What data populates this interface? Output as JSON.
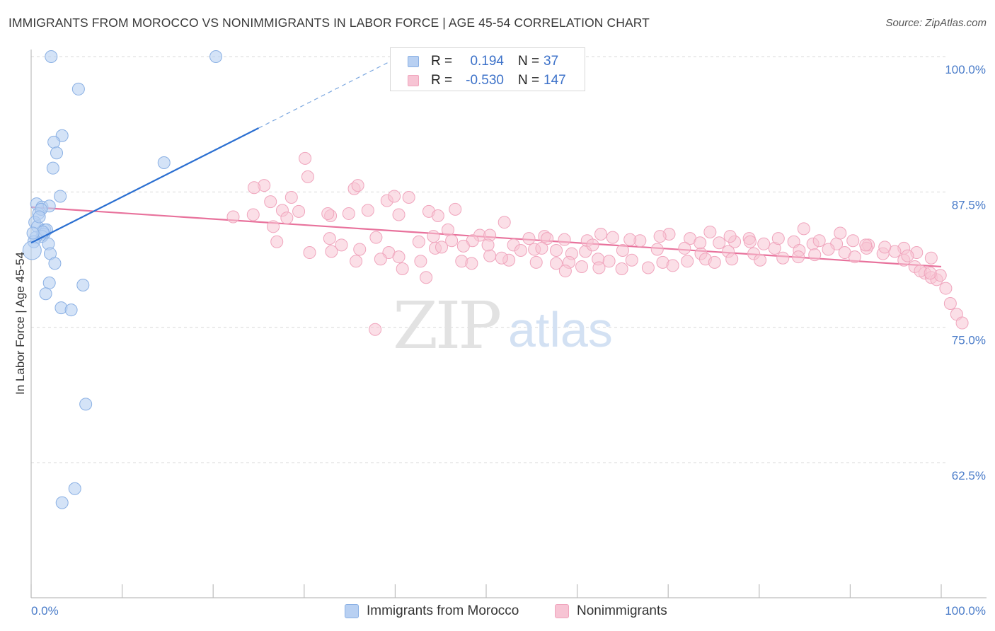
{
  "header": {
    "title": "IMMIGRANTS FROM MOROCCO VS NONIMMIGRANTS IN LABOR FORCE | AGE 45-54 CORRELATION CHART",
    "source": "Source: ZipAtlas.com"
  },
  "watermark": {
    "zip": "ZIP",
    "atlas": "atlas"
  },
  "legend_top": {
    "rows": [
      {
        "r_label": "R =",
        "r_value": "0.194",
        "n_label": "N =",
        "n_value": "37"
      },
      {
        "r_label": "R =",
        "r_value": "-0.530",
        "n_label": "N =",
        "n_value": "147"
      }
    ]
  },
  "legend_bottom": {
    "items": [
      "Immigrants from Morocco",
      "Nonimmigrants"
    ]
  },
  "colors": {
    "blue_fill": "#b8d0f2",
    "blue_stroke": "#8ab0e4",
    "blue_line": "#2b6fd1",
    "pink_fill": "#f7c4d4",
    "pink_stroke": "#f0a5bd",
    "pink_line": "#e8729c",
    "tick_text": "#4a7cc9",
    "grid": "#d9d9d9"
  },
  "chart_data": {
    "type": "scatter",
    "title": "IMMIGRANTS FROM MOROCCO VS NONIMMIGRANTS IN LABOR FORCE | AGE 45-54 CORRELATION CHART",
    "xlabel": "",
    "ylabel": "In Labor Force | Age 45-54",
    "xlim": [
      0,
      100
    ],
    "ylim": [
      50,
      101.5
    ],
    "y_ticks": [
      62.5,
      75.0,
      87.5,
      100.0
    ],
    "y_tick_labels": [
      "62.5%",
      "75.0%",
      "87.5%",
      "100.0%"
    ],
    "x_tick_labels": [
      "0.0%",
      "100.0%"
    ],
    "series": [
      {
        "name": "Immigrants from Morocco",
        "R": 0.194,
        "N": 37,
        "trend": {
          "x0": 0,
          "y0": 82.8,
          "x1": 25,
          "y1": 93.4,
          "dash_x1": 40.5,
          "dash_y1": 100.0
        },
        "points": [
          [
            2.2,
            100.0
          ],
          [
            20.3,
            100.0
          ],
          [
            5.2,
            97.0
          ],
          [
            3.4,
            92.7
          ],
          [
            2.5,
            92.1
          ],
          [
            2.8,
            91.1
          ],
          [
            14.6,
            90.2
          ],
          [
            2.4,
            89.7
          ],
          [
            3.2,
            87.1
          ],
          [
            0.6,
            86.4
          ],
          [
            1.2,
            86.1
          ],
          [
            2.0,
            86.2
          ],
          [
            0.8,
            85.5
          ],
          [
            1.1,
            85.9
          ],
          [
            0.4,
            84.7
          ],
          [
            0.7,
            84.3
          ],
          [
            1.5,
            84.0
          ],
          [
            1.7,
            84.0
          ],
          [
            1.4,
            83.6
          ],
          [
            1.2,
            83.4
          ],
          [
            0.5,
            83.3
          ],
          [
            0.3,
            82.9
          ],
          [
            1.9,
            82.7
          ],
          [
            0.1,
            82.1
          ],
          [
            2.1,
            81.8
          ],
          [
            2.6,
            80.9
          ],
          [
            2.0,
            79.1
          ],
          [
            5.7,
            78.9
          ],
          [
            1.6,
            78.1
          ],
          [
            3.3,
            76.8
          ],
          [
            4.4,
            76.6
          ],
          [
            6.0,
            67.9
          ],
          [
            4.8,
            60.1
          ],
          [
            3.4,
            58.8
          ],
          [
            0.9,
            85.2
          ],
          [
            1.3,
            83.8
          ],
          [
            0.2,
            83.7
          ]
        ]
      },
      {
        "name": "Nonimmigrants",
        "R": -0.53,
        "N": 147,
        "trend": {
          "x0": 0,
          "y0": 86.1,
          "x1": 100,
          "y1": 80.6
        },
        "points": [
          [
            30.1,
            90.6
          ],
          [
            30.4,
            88.9
          ],
          [
            25.6,
            88.1
          ],
          [
            24.5,
            87.9
          ],
          [
            35.5,
            87.8
          ],
          [
            35.9,
            88.1
          ],
          [
            28.6,
            87.0
          ],
          [
            39.1,
            86.7
          ],
          [
            39.9,
            87.1
          ],
          [
            41.5,
            87.0
          ],
          [
            26.3,
            86.6
          ],
          [
            37.0,
            85.8
          ],
          [
            27.6,
            85.8
          ],
          [
            29.4,
            85.7
          ],
          [
            34.9,
            85.5
          ],
          [
            43.7,
            85.7
          ],
          [
            40.4,
            85.4
          ],
          [
            24.4,
            85.4
          ],
          [
            28.1,
            85.1
          ],
          [
            22.2,
            85.2
          ],
          [
            32.9,
            85.3
          ],
          [
            46.6,
            85.9
          ],
          [
            44.7,
            85.3
          ],
          [
            26.6,
            84.3
          ],
          [
            52.0,
            84.7
          ],
          [
            45.8,
            84.0
          ],
          [
            49.3,
            83.5
          ],
          [
            50.4,
            83.5
          ],
          [
            62.6,
            83.6
          ],
          [
            70.1,
            83.6
          ],
          [
            74.6,
            83.8
          ],
          [
            56.4,
            83.4
          ],
          [
            58.6,
            83.1
          ],
          [
            63.9,
            83.3
          ],
          [
            78.9,
            83.2
          ],
          [
            32.8,
            83.2
          ],
          [
            27.0,
            82.9
          ],
          [
            34.1,
            82.6
          ],
          [
            42.6,
            82.9
          ],
          [
            48.5,
            83.0
          ],
          [
            54.7,
            83.2
          ],
          [
            56.7,
            83.2
          ],
          [
            61.1,
            83.0
          ],
          [
            66.9,
            83.0
          ],
          [
            72.4,
            83.2
          ],
          [
            75.6,
            82.8
          ],
          [
            77.3,
            82.9
          ],
          [
            80.5,
            82.7
          ],
          [
            83.8,
            82.9
          ],
          [
            85.9,
            82.7
          ],
          [
            86.6,
            83.0
          ],
          [
            88.5,
            82.7
          ],
          [
            90.3,
            83.0
          ],
          [
            92.0,
            82.6
          ],
          [
            95.9,
            82.3
          ],
          [
            30.6,
            81.9
          ],
          [
            53.0,
            82.6
          ],
          [
            47.5,
            82.5
          ],
          [
            60.9,
            82.0
          ],
          [
            44.4,
            82.3
          ],
          [
            55.3,
            82.2
          ],
          [
            57.7,
            82.1
          ],
          [
            59.4,
            81.8
          ],
          [
            65.0,
            82.1
          ],
          [
            68.8,
            82.2
          ],
          [
            71.8,
            82.3
          ],
          [
            73.6,
            81.8
          ],
          [
            76.6,
            82.0
          ],
          [
            79.4,
            81.8
          ],
          [
            81.7,
            82.3
          ],
          [
            84.4,
            82.1
          ],
          [
            87.6,
            82.2
          ],
          [
            89.4,
            81.9
          ],
          [
            91.8,
            82.3
          ],
          [
            93.6,
            81.8
          ],
          [
            94.9,
            82.0
          ],
          [
            97.3,
            81.9
          ],
          [
            39.3,
            81.9
          ],
          [
            40.4,
            81.5
          ],
          [
            50.4,
            81.6
          ],
          [
            47.3,
            81.1
          ],
          [
            42.8,
            81.1
          ],
          [
            35.7,
            81.1
          ],
          [
            48.4,
            80.9
          ],
          [
            52.5,
            81.2
          ],
          [
            59.1,
            81.0
          ],
          [
            63.5,
            81.1
          ],
          [
            66.0,
            81.2
          ],
          [
            69.4,
            81.0
          ],
          [
            72.1,
            81.1
          ],
          [
            74.1,
            81.3
          ],
          [
            77.0,
            81.3
          ],
          [
            82.6,
            81.4
          ],
          [
            86.1,
            81.7
          ],
          [
            90.5,
            81.5
          ],
          [
            95.9,
            81.2
          ],
          [
            96.3,
            81.6
          ],
          [
            98.9,
            81.4
          ],
          [
            36.1,
            82.2
          ],
          [
            38.4,
            81.3
          ],
          [
            55.5,
            81.0
          ],
          [
            62.3,
            81.3
          ],
          [
            32.6,
            85.5
          ],
          [
            37.9,
            83.3
          ],
          [
            44.2,
            83.4
          ],
          [
            46.2,
            83.0
          ],
          [
            50.2,
            82.6
          ],
          [
            53.8,
            82.1
          ],
          [
            57.7,
            80.9
          ],
          [
            60.5,
            80.6
          ],
          [
            64.9,
            80.4
          ],
          [
            67.8,
            80.5
          ],
          [
            70.5,
            80.7
          ],
          [
            75.1,
            81.0
          ],
          [
            80.1,
            81.2
          ],
          [
            84.3,
            81.5
          ],
          [
            40.8,
            80.4
          ],
          [
            43.4,
            79.6
          ],
          [
            58.7,
            80.2
          ],
          [
            62.4,
            80.5
          ],
          [
            97.1,
            80.6
          ],
          [
            98.2,
            80.0
          ],
          [
            98.9,
            79.6
          ],
          [
            99.5,
            79.4
          ],
          [
            100.5,
            78.6
          ],
          [
            99.9,
            79.8
          ],
          [
            97.7,
            80.2
          ],
          [
            98.8,
            80.0
          ],
          [
            101.0,
            77.2
          ],
          [
            101.7,
            76.2
          ],
          [
            102.3,
            75.4
          ],
          [
            37.8,
            74.8
          ],
          [
            33.0,
            82.0
          ],
          [
            45.1,
            82.4
          ],
          [
            51.7,
            81.4
          ],
          [
            56.1,
            82.3
          ],
          [
            61.7,
            82.6
          ],
          [
            65.8,
            83.1
          ],
          [
            69.1,
            83.4
          ],
          [
            73.5,
            82.8
          ],
          [
            76.8,
            83.4
          ],
          [
            79.0,
            82.9
          ],
          [
            82.1,
            83.2
          ],
          [
            84.9,
            84.1
          ],
          [
            88.9,
            83.7
          ],
          [
            91.7,
            82.6
          ],
          [
            93.8,
            82.4
          ]
        ]
      }
    ]
  }
}
